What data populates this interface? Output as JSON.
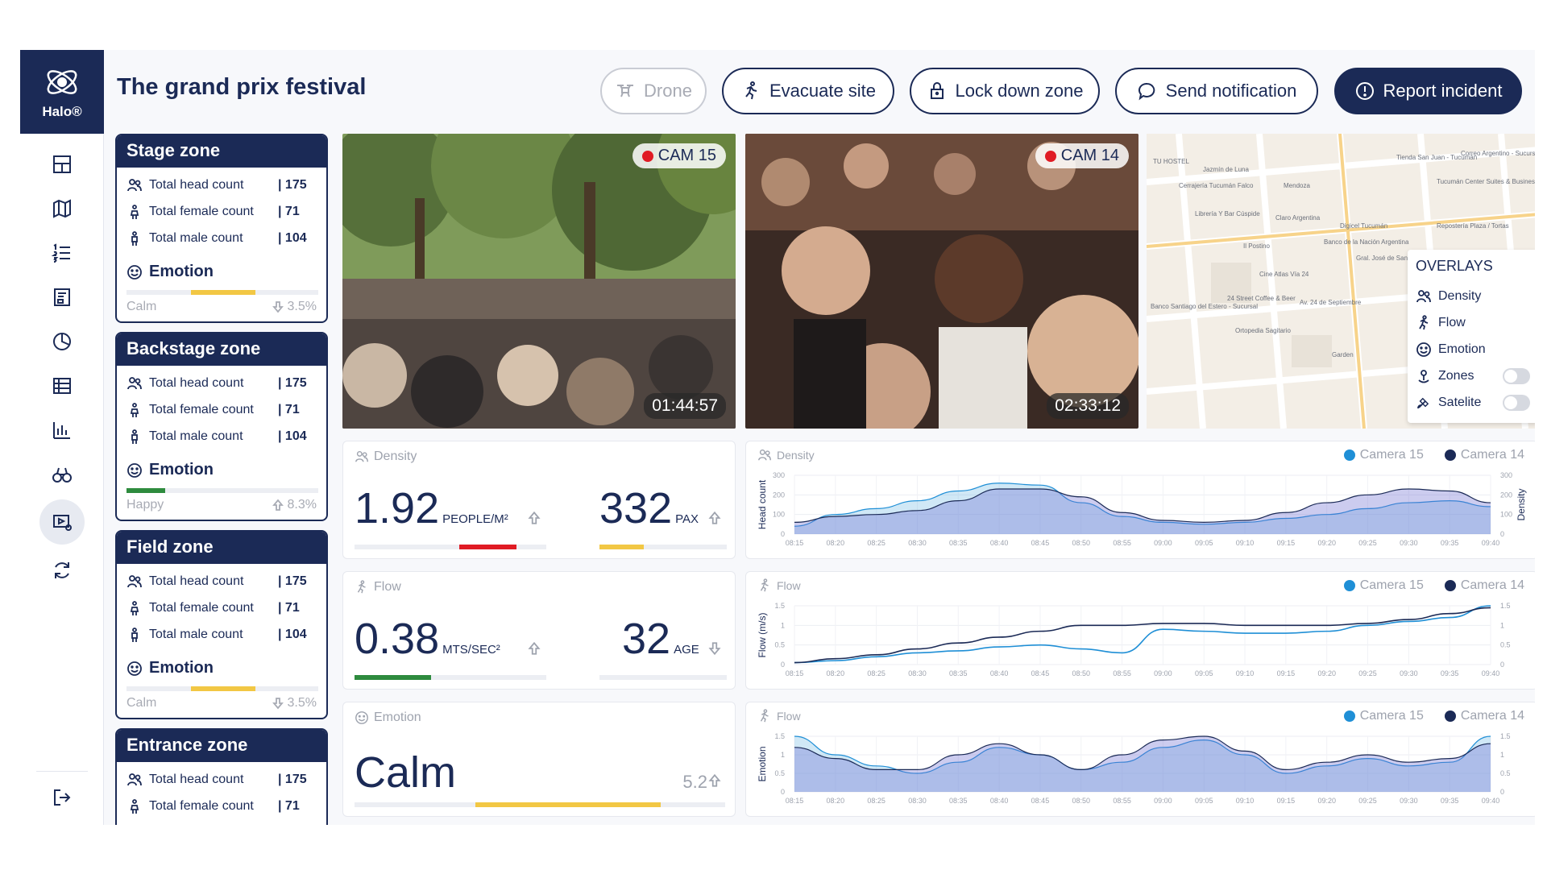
{
  "app": {
    "brand": "Halo®",
    "title": "The grand prix festival"
  },
  "nav": [
    "dashboard-icon",
    "map-icon",
    "list-icon",
    "report-icon",
    "pie-chart-icon",
    "table-icon",
    "bar-chart-icon",
    "binoculars-icon",
    "camera-settings-icon",
    "refresh-icon",
    "logout-icon"
  ],
  "actions": {
    "drone": "Drone",
    "evacuate": "Evacuate site",
    "lockdown": "Lock down zone",
    "notify": "Send notification",
    "report": "Report incident"
  },
  "zones": [
    {
      "name": "Stage zone",
      "head_label": "Total head count",
      "head": "| 175",
      "female_label": "Total female count",
      "female": "| 71",
      "male_label": "Total male count",
      "male": "| 104",
      "emotion_label": "Emotion",
      "mood": "Calm",
      "pct": "3.5%",
      "level": 0.5,
      "color": "#f2c744"
    },
    {
      "name": "Backstage zone",
      "head_label": "Total head count",
      "head": "| 175",
      "female_label": "Total female count",
      "female": "| 71",
      "male_label": "Total male count",
      "male": "| 104",
      "emotion_label": "Emotion",
      "mood": "Happy",
      "pct": "8.3%",
      "level": 0.3,
      "color": "#2e8b3e"
    },
    {
      "name": "Field zone",
      "head_label": "Total head count",
      "head": "| 175",
      "female_label": "Total female count",
      "female": "| 71",
      "male_label": "Total male count",
      "male": "| 104",
      "emotion_label": "Emotion",
      "mood": "Calm",
      "pct": "3.5%",
      "level": 0.5,
      "color": "#f2c744"
    },
    {
      "name": "Entrance zone",
      "head_label": "Total head count",
      "head": "| 175",
      "female_label": "Total female count",
      "female": "| 71"
    }
  ],
  "cams": [
    {
      "label": "CAM 15",
      "time": "01:44:57"
    },
    {
      "label": "CAM 14",
      "time": "02:33:12"
    }
  ],
  "map": {
    "overlays_title": "OVERLAYS",
    "overlays": [
      {
        "label": "Density",
        "icon": "people-icon"
      },
      {
        "label": "Flow",
        "icon": "walk-icon"
      },
      {
        "label": "Emotion",
        "icon": "smile-icon"
      },
      {
        "label": "Zones",
        "icon": "pin-icon",
        "toggle": "off"
      },
      {
        "label": "Satelite",
        "icon": "satellite-icon",
        "toggle": "off"
      }
    ],
    "labels": [
      "TU HOSTEL",
      "Jazmín de Luna",
      "Cerrajería Tucumán Falco",
      "Librería Y Bar Cúspide",
      "Claro Argentina",
      "Digicel Tucumán",
      "Tienda San Juan - Tucumán",
      "Correo Argentino - Sucursal Tucumán",
      "Tucumán Center Suites & Business",
      "Banco de la Nación Argentina",
      "Gral. José de San Martín",
      "Cine Atlas Vía 24",
      "24 Street Coffee & Beer",
      "Av. 24 de Septiembre",
      "Ortopedia Sagitario",
      "Banco Santiago del Estero - Sucursal",
      "Garden",
      "Mendoza",
      "Repostería Plaza / Tortas",
      "Il Postino"
    ]
  },
  "metrics": {
    "density": {
      "title": "Density",
      "value": "1.92",
      "unit": "PEOPLE/M²",
      "pax": "332",
      "pax_unit": "PAX",
      "density_level": 0.3,
      "pax_level": 0.35
    },
    "flow": {
      "title": "Flow",
      "value": "0.38",
      "unit": "MTS/SEC²",
      "age": "32",
      "age_unit": "AGE",
      "flow_level": 0.4
    },
    "emotion": {
      "title": "Emotion",
      "value": "Calm",
      "score": "5.2",
      "level": 0.5
    }
  },
  "legend": {
    "cam15": "Camera 15",
    "cam14": "Camera 14"
  },
  "colors": {
    "cam15": "#1f8fd6",
    "cam14": "#1b2a56",
    "red": "#e01b24",
    "yellow": "#f2c744",
    "green": "#2e8b3e"
  },
  "chart_data": [
    {
      "type": "area",
      "title": "Density",
      "ylabel": "Head count",
      "y2label": "Density",
      "ylim": [
        0,
        300
      ],
      "yticks": [
        "0",
        "100",
        "200",
        "300"
      ],
      "x": [
        "08:15",
        "08:20",
        "08:25",
        "08:30",
        "08:35",
        "08:40",
        "08:45",
        "08:50",
        "08:55",
        "09:00",
        "09:05",
        "09:10",
        "09:15",
        "09:20",
        "09:25",
        "09:30",
        "09:35",
        "09:40"
      ],
      "series": [
        {
          "name": "Camera 15",
          "values": [
            40,
            100,
            130,
            170,
            220,
            260,
            250,
            160,
            90,
            60,
            50,
            60,
            80,
            100,
            130,
            160,
            170,
            140
          ]
        },
        {
          "name": "Camera 14",
          "values": [
            60,
            90,
            100,
            120,
            170,
            230,
            230,
            190,
            110,
            70,
            60,
            70,
            110,
            160,
            200,
            230,
            220,
            160
          ]
        }
      ]
    },
    {
      "type": "line",
      "title": "Flow",
      "ylabel": "Flow (m/s)",
      "ylim": [
        0,
        1.5
      ],
      "yticks": [
        "0",
        "0.5",
        "1",
        "1.5"
      ],
      "x": [
        "08:15",
        "08:20",
        "08:25",
        "08:30",
        "08:35",
        "08:40",
        "08:45",
        "08:50",
        "08:55",
        "09:00",
        "09:05",
        "09:10",
        "09:15",
        "09:20",
        "09:25",
        "09:30",
        "09:35",
        "09:40"
      ],
      "series": [
        {
          "name": "Camera 15",
          "values": [
            0.05,
            0.1,
            0.2,
            0.3,
            0.35,
            0.45,
            0.5,
            0.4,
            0.3,
            0.9,
            0.85,
            0.8,
            0.8,
            0.85,
            1.0,
            1.1,
            1.2,
            1.5
          ]
        },
        {
          "name": "Camera 14",
          "values": [
            0.05,
            0.15,
            0.25,
            0.4,
            0.55,
            0.7,
            0.85,
            1.0,
            1.0,
            1.05,
            1.05,
            1.0,
            1.0,
            1.0,
            1.05,
            1.15,
            1.3,
            1.45
          ]
        }
      ]
    },
    {
      "type": "area",
      "title": "Flow",
      "ylabel": "Emotion",
      "ylim": [
        0,
        1.5
      ],
      "yticks": [
        "0",
        "0.5",
        "1",
        "1.5"
      ],
      "x": [
        "08:15",
        "08:20",
        "08:25",
        "08:30",
        "08:35",
        "08:40",
        "08:45",
        "08:50",
        "08:55",
        "09:00",
        "09:05",
        "09:10",
        "09:15",
        "09:20",
        "09:25",
        "09:30",
        "09:35",
        "09:40"
      ],
      "series": [
        {
          "name": "Camera 15",
          "values": [
            1.5,
            1.0,
            0.7,
            0.5,
            0.8,
            1.2,
            1.0,
            0.6,
            0.8,
            1.2,
            1.4,
            1.0,
            0.5,
            0.7,
            0.9,
            0.7,
            0.8,
            1.5
          ]
        },
        {
          "name": "Camera 14",
          "values": [
            1.2,
            0.9,
            0.6,
            0.6,
            1.0,
            1.3,
            1.0,
            0.6,
            1.0,
            1.4,
            1.5,
            1.1,
            0.6,
            0.8,
            1.0,
            0.8,
            0.9,
            1.3
          ]
        }
      ]
    }
  ]
}
